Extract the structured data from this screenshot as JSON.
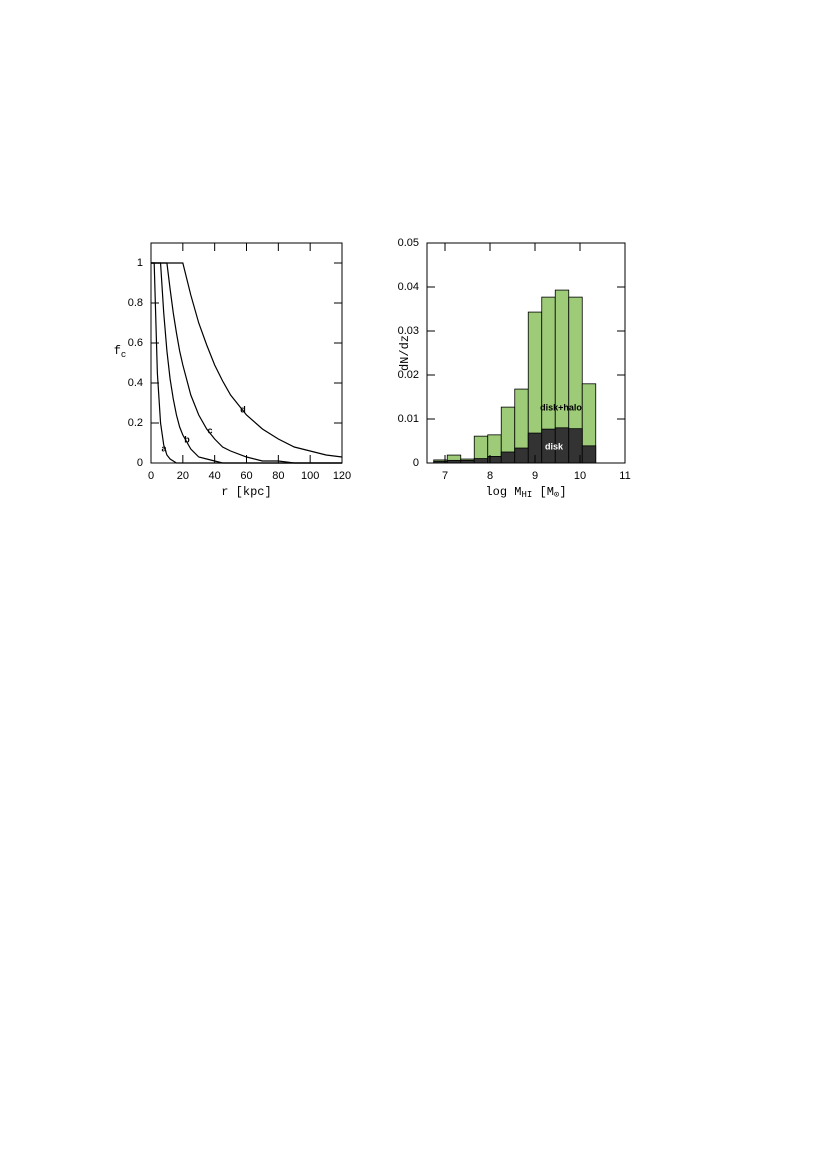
{
  "chart_data": [
    {
      "type": "line",
      "xlabel": "r [kpc]",
      "ylabel": "f",
      "ylabel_sub": "c",
      "x": [
        0,
        2,
        4,
        6,
        8,
        10,
        12,
        14,
        16,
        18,
        20,
        25,
        30,
        35,
        40,
        45,
        50,
        60,
        70,
        80,
        90,
        100,
        110,
        120
      ],
      "series": [
        {
          "name": "a",
          "color": "#000000",
          "values": [
            1,
            1,
            0.45,
            0.2,
            0.09,
            0.04,
            0.02,
            0.01,
            0,
            0,
            0,
            0,
            0,
            0,
            0,
            0,
            0,
            0,
            0,
            0,
            0,
            0,
            0,
            0
          ]
        },
        {
          "name": "b",
          "color": "#000000",
          "values": [
            1,
            1,
            1,
            1,
            0.75,
            0.56,
            0.42,
            0.32,
            0.24,
            0.18,
            0.14,
            0.07,
            0.03,
            0.02,
            0.01,
            0,
            0,
            0,
            0,
            0,
            0,
            0,
            0,
            0
          ]
        },
        {
          "name": "c",
          "color": "#000000",
          "values": [
            1,
            1,
            1,
            1,
            1,
            1,
            0.87,
            0.75,
            0.65,
            0.56,
            0.49,
            0.34,
            0.24,
            0.17,
            0.12,
            0.08,
            0.06,
            0.03,
            0.01,
            0.01,
            0,
            0,
            0,
            0
          ]
        },
        {
          "name": "d",
          "color": "#000000",
          "values": [
            1,
            1,
            1,
            1,
            1,
            1,
            1,
            1,
            1,
            1,
            1,
            0.84,
            0.7,
            0.59,
            0.49,
            0.41,
            0.34,
            0.24,
            0.17,
            0.12,
            0.08,
            0.06,
            0.04,
            0.03
          ]
        }
      ],
      "xlim": [
        0,
        120
      ],
      "xticks": [
        0,
        20,
        40,
        60,
        80,
        100,
        120
      ],
      "ylim": [
        0,
        1.1
      ],
      "yticks": [
        0,
        0.2,
        0.4,
        0.6,
        0.8,
        1
      ]
    },
    {
      "type": "histogram",
      "xlabel_parts": [
        {
          "text": "log M",
          "sub": false
        },
        {
          "text": "HI",
          "sub": true
        },
        {
          "text": " [M",
          "sub": false
        },
        {
          "text": "⊙",
          "sub": true
        },
        {
          "text": "]",
          "sub": false
        }
      ],
      "ylabel": "dN/dz",
      "bins": [
        6.75,
        7.05,
        7.35,
        7.65,
        7.95,
        8.25,
        8.55,
        8.85,
        9.15,
        9.45,
        9.75,
        10.05,
        10.35
      ],
      "series": [
        {
          "name": "disk+halo",
          "color": "#9dcb78",
          "values": [
            0.0007,
            0.0018,
            0.0009,
            0.0061,
            0.0064,
            0.0127,
            0.0168,
            0.0343,
            0.0377,
            0.0393,
            0.0377,
            0.018
          ]
        },
        {
          "name": "disk",
          "color": "#333333",
          "values": [
            0.0004,
            0.0006,
            0.0006,
            0.001,
            0.0015,
            0.0025,
            0.0034,
            0.0068,
            0.0077,
            0.008,
            0.0078,
            0.0039
          ]
        }
      ],
      "xlim": [
        6.6,
        11
      ],
      "xticks": [
        7,
        8,
        9,
        10,
        11
      ],
      "ylim": [
        0,
        0.05
      ],
      "yticks": [
        0,
        0.01,
        0.02,
        0.03,
        0.04,
        0.05
      ]
    }
  ]
}
